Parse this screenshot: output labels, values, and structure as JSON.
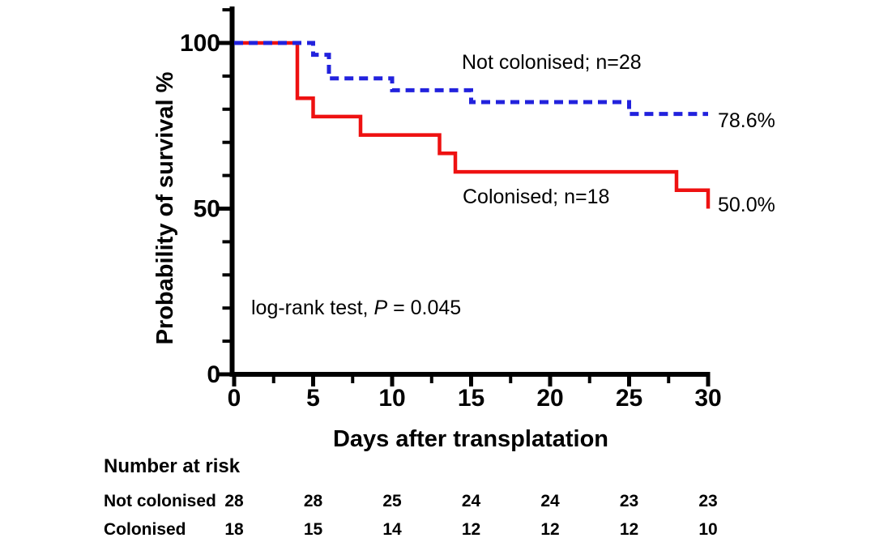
{
  "chart_data": {
    "type": "line",
    "subtype": "kaplan-meier-step",
    "title": "",
    "xlabel": "Days after transplatation",
    "ylabel": "Probability of survival %",
    "xlim": [
      0,
      30
    ],
    "ylim": [
      0,
      100
    ],
    "grid": false,
    "x_major_ticks": [
      0,
      5,
      10,
      15,
      20,
      25,
      30
    ],
    "x_minor_ticks": [
      2.5,
      7.5,
      12.5,
      17.5,
      22.5,
      27.5
    ],
    "y_major_ticks": [
      0,
      50,
      100
    ],
    "y_minor_ticks": [
      10,
      20,
      30,
      40,
      60,
      70,
      80,
      90,
      110
    ],
    "series": [
      {
        "name": "Not colonised",
        "n": 28,
        "label": "Not colonised; n=28",
        "end_label": "78.6%",
        "color": "#2222dd",
        "style": "dashed",
        "steps": [
          [
            0,
            100
          ],
          [
            5,
            100
          ],
          [
            5,
            96.43
          ],
          [
            6,
            96.43
          ],
          [
            6,
            89.29
          ],
          [
            10,
            89.29
          ],
          [
            10,
            85.71
          ],
          [
            15,
            85.71
          ],
          [
            15,
            82.14
          ],
          [
            25,
            82.14
          ],
          [
            25,
            78.57
          ],
          [
            30,
            78.57
          ]
        ]
      },
      {
        "name": "Colonised",
        "n": 18,
        "label": "Colonised; n=18",
        "end_label": "50.0%",
        "color": "#ee1111",
        "style": "solid",
        "steps": [
          [
            0,
            100
          ],
          [
            4,
            100
          ],
          [
            4,
            83.33
          ],
          [
            5,
            83.33
          ],
          [
            5,
            77.78
          ],
          [
            8,
            77.78
          ],
          [
            8,
            72.22
          ],
          [
            13,
            72.22
          ],
          [
            13,
            66.67
          ],
          [
            14,
            66.67
          ],
          [
            14,
            61.11
          ],
          [
            28,
            61.11
          ],
          [
            28,
            55.56
          ],
          [
            30,
            55.56
          ],
          [
            30,
            50.0
          ]
        ]
      }
    ],
    "annotation": {
      "prefix": "log-rank test, ",
      "p_symbol": "P",
      "suffix": " = 0.045",
      "color": "#303552"
    },
    "at_risk": {
      "title": "Number at risk",
      "times": [
        0,
        5,
        10,
        15,
        20,
        25,
        30
      ],
      "rows": [
        {
          "label": "Not colonised",
          "values": [
            28,
            28,
            25,
            24,
            24,
            23,
            23
          ]
        },
        {
          "label": "Colonised",
          "values": [
            18,
            15,
            14,
            12,
            12,
            12,
            10
          ]
        }
      ]
    }
  }
}
